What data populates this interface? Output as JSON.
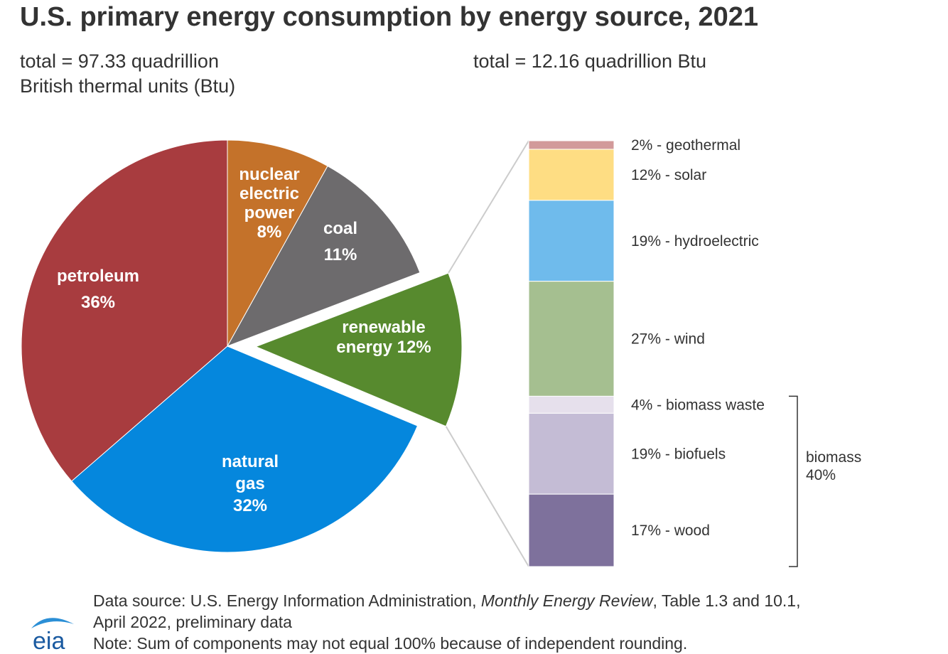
{
  "title": "U.S. primary energy consumption by energy source, 2021",
  "left_total": [
    "total = 97.33 quadrillion",
    "British thermal units (Btu)"
  ],
  "right_total": "total = 12.16 quadrillion Btu",
  "chart_data": [
    {
      "type": "pie",
      "title": "U.S. primary energy consumption by energy source, 2021",
      "total": "97.33 quadrillion British thermal units (Btu)",
      "slices": [
        {
          "name": "petroleum",
          "label_lines": [
            "petroleum",
            "36%"
          ],
          "value": 36,
          "color": "#a83c3f"
        },
        {
          "name": "nuclear electric power",
          "label_lines": [
            "nuclear",
            "electric",
            "power",
            "8%"
          ],
          "value": 8,
          "color": "#c4722a"
        },
        {
          "name": "coal",
          "label_lines": [
            "coal",
            "11%"
          ],
          "value": 11,
          "color": "#6d6b6d"
        },
        {
          "name": "renewable energy",
          "label_lines": [
            "renewable",
            "energy 12%"
          ],
          "value": 12,
          "color": "#578a2e",
          "exploded": true
        },
        {
          "name": "natural gas",
          "label_lines": [
            "natural",
            "gas",
            "32%"
          ],
          "value": 32,
          "color": "#0587dd"
        }
      ]
    },
    {
      "type": "bar",
      "stacked": true,
      "total": "12.16 quadrillion Btu",
      "segments": [
        {
          "name": "geothermal",
          "label": "2% - geothermal",
          "value": 2,
          "color": "#d29a9a"
        },
        {
          "name": "solar",
          "label": "12% - solar",
          "value": 12,
          "color": "#fedd83"
        },
        {
          "name": "hydroelectric",
          "label": "19% - hydroelectric",
          "value": 19,
          "color": "#6fbbec"
        },
        {
          "name": "wind",
          "label": "27% - wind",
          "value": 27,
          "color": "#a5bf90"
        },
        {
          "name": "biomass waste",
          "label": "4% - biomass waste",
          "value": 4,
          "color": "#e6e0ec"
        },
        {
          "name": "biofuels",
          "label": "19% - biofuels",
          "value": 19,
          "color": "#c4bcd5"
        },
        {
          "name": "wood",
          "label": "17% - wood",
          "value": 17,
          "color": "#7e719c"
        }
      ],
      "bracket": {
        "label_lines": [
          "biomass",
          "40%"
        ],
        "value": 40
      }
    }
  ],
  "footer": {
    "line1_pre": "Data source: U.S. Energy Information Administration, ",
    "line1_italic": "Monthly Energy Review",
    "line1_post": ", Table 1.3 and 10.1,",
    "line2": "April 2022, preliminary data",
    "line3": "Note: Sum of components may not equal 100% because of independent rounding."
  },
  "logo": {
    "text": "eia",
    "color": "#1a5aa0",
    "swoosh_color": "#2b8fd6"
  }
}
